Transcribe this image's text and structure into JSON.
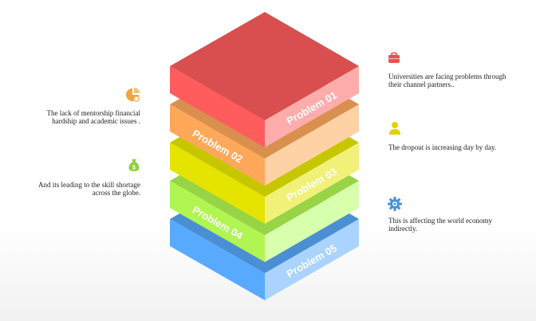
{
  "layers": [
    {
      "label": "Problem 01",
      "label_side": "right",
      "colors": {
        "top": "#d94f4f",
        "left": "#ff5d5d",
        "right": "#ffacac"
      }
    },
    {
      "label": "Problem 02",
      "label_side": "left",
      "colors": {
        "top": "#d9904f",
        "left": "#ffa85a",
        "right": "#ffd2a6"
      }
    },
    {
      "label": "Problem 03",
      "label_side": "right",
      "colors": {
        "top": "#c7c700",
        "left": "#e4e400",
        "right": "#f1f17a"
      }
    },
    {
      "label": "Problem 04",
      "label_side": "left",
      "colors": {
        "top": "#97d446",
        "left": "#b1f553",
        "right": "#d7ffac"
      }
    },
    {
      "label": "Problem 05",
      "label_side": "right",
      "colors": {
        "top": "#4a8fd3",
        "left": "#58aaff",
        "right": "#aad3ff"
      }
    }
  ],
  "notes": {
    "n1": "Universities are facing problems through their channel partners..",
    "n2": "The lack of mentorship financial hardship and academic issues .",
    "n3": "The dropout is increasing day by day.",
    "n4": "And its leading to the skill shortage across the globe.",
    "n5": "This is affecting the world economy indirectly."
  },
  "icons": {
    "n1": {
      "name": "briefcase-icon",
      "color": "#e85050"
    },
    "n2": {
      "name": "money-chart-icon",
      "color": "#f0a640"
    },
    "n3": {
      "name": "user-icon",
      "color": "#e2d000"
    },
    "n4": {
      "name": "money-bag-icon",
      "color": "#8fd13e"
    },
    "n5": {
      "name": "gear-icon",
      "color": "#4a90d9"
    }
  }
}
